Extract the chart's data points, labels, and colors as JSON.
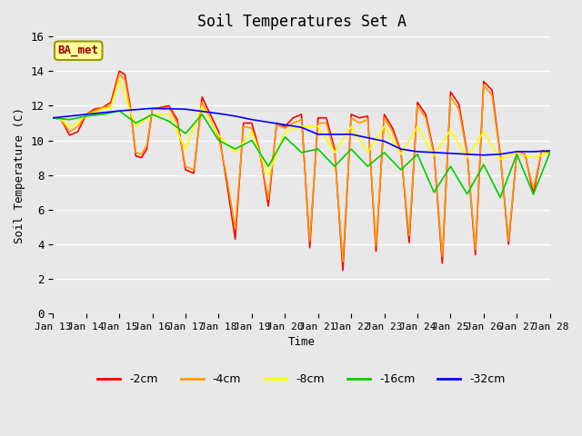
{
  "title": "Soil Temperatures Set A",
  "xlabel": "Time",
  "ylabel": "Soil Temperature (C)",
  "annotation": "BA_met",
  "ylim": [
    0,
    16
  ],
  "xlim": [
    0,
    15
  ],
  "background_color": "#e8e8e8",
  "plot_bg_color": "#e8e8e8",
  "colors": {
    "-2cm": "#ff0000",
    "-4cm": "#ff9900",
    "-8cm": "#ffff00",
    "-16cm": "#00cc00",
    "-32cm": "#0000ff"
  },
  "x_tick_labels": [
    "Jan 13",
    "Jan 14",
    "Jan 15",
    "Jan 16",
    "Jan 17",
    "Jan 18",
    "Jan 19",
    "Jan 20",
    "Jan 21",
    "Jan 22",
    "Jan 23",
    "Jan 24",
    "Jan 25",
    "Jan 26",
    "Jan 27",
    "Jan 28"
  ],
  "series": {
    "-2cm": {
      "x": [
        0.0,
        0.25,
        0.5,
        0.75,
        1.0,
        1.25,
        1.5,
        1.75,
        2.0,
        2.17,
        2.33,
        2.5,
        2.67,
        2.83,
        3.0,
        3.25,
        3.5,
        3.75,
        4.0,
        4.25,
        4.5,
        4.75,
        5.0,
        5.25,
        5.5,
        5.75,
        6.0,
        6.25,
        6.5,
        6.75,
        7.0,
        7.25,
        7.5,
        7.75,
        8.0,
        8.25,
        8.5,
        8.75,
        9.0,
        9.25,
        9.5,
        9.75,
        10.0,
        10.25,
        10.5,
        10.75,
        11.0,
        11.25,
        11.5,
        11.75,
        12.0,
        12.25,
        12.5,
        12.75,
        13.0,
        13.25,
        13.5,
        13.75,
        14.0,
        14.25,
        14.5,
        14.75,
        15.0
      ],
      "y": [
        11.3,
        11.2,
        10.3,
        10.5,
        11.5,
        11.8,
        11.9,
        12.2,
        14.0,
        13.8,
        12.0,
        9.1,
        9.0,
        9.5,
        11.8,
        11.9,
        12.0,
        11.2,
        8.3,
        8.1,
        12.5,
        11.5,
        10.5,
        7.5,
        4.3,
        11.0,
        11.0,
        9.3,
        6.2,
        11.0,
        10.8,
        11.3,
        11.5,
        3.8,
        11.3,
        11.3,
        9.5,
        2.5,
        11.5,
        11.3,
        11.4,
        3.6,
        11.5,
        10.7,
        9.4,
        4.1,
        12.2,
        11.5,
        9.3,
        2.9,
        12.8,
        12.1,
        9.3,
        3.4,
        13.4,
        12.9,
        9.2,
        4.0,
        9.3,
        9.2,
        6.9,
        9.4,
        9.3
      ]
    },
    "-4cm": {
      "x": [
        0.0,
        0.25,
        0.5,
        0.75,
        1.0,
        1.25,
        1.5,
        1.75,
        2.0,
        2.17,
        2.33,
        2.5,
        2.67,
        2.83,
        3.0,
        3.25,
        3.5,
        3.75,
        4.0,
        4.25,
        4.5,
        4.75,
        5.0,
        5.25,
        5.5,
        5.75,
        6.0,
        6.25,
        6.5,
        6.75,
        7.0,
        7.25,
        7.5,
        7.75,
        8.0,
        8.25,
        8.5,
        8.75,
        9.0,
        9.25,
        9.5,
        9.75,
        10.0,
        10.25,
        10.5,
        10.75,
        11.0,
        11.25,
        11.5,
        11.75,
        12.0,
        12.25,
        12.5,
        12.75,
        13.0,
        13.25,
        13.5,
        13.75,
        14.0,
        14.25,
        14.5,
        14.75,
        15.0
      ],
      "y": [
        11.3,
        11.2,
        10.5,
        10.8,
        11.5,
        11.7,
        11.9,
        12.0,
        13.8,
        13.5,
        11.8,
        9.3,
        9.2,
        9.7,
        11.8,
        11.8,
        11.9,
        11.0,
        8.5,
        8.3,
        12.2,
        11.2,
        10.2,
        7.8,
        4.9,
        10.8,
        10.7,
        9.2,
        6.6,
        10.9,
        10.7,
        11.0,
        11.2,
        4.2,
        11.0,
        11.0,
        9.3,
        3.0,
        11.3,
        11.0,
        11.2,
        3.9,
        11.3,
        10.5,
        9.3,
        4.5,
        12.0,
        11.3,
        9.2,
        3.3,
        12.5,
        11.8,
        9.2,
        3.7,
        13.2,
        12.6,
        9.1,
        4.2,
        9.3,
        9.1,
        7.2,
        9.4,
        9.2
      ]
    },
    "-8cm": {
      "x": [
        0.0,
        0.25,
        0.5,
        0.75,
        1.0,
        1.25,
        1.5,
        1.75,
        2.0,
        2.5,
        3.0,
        3.5,
        4.0,
        4.5,
        5.0,
        5.5,
        6.0,
        6.5,
        7.0,
        7.5,
        8.0,
        8.5,
        9.0,
        9.5,
        10.0,
        10.5,
        11.0,
        11.5,
        12.0,
        12.5,
        13.0,
        13.5,
        14.0,
        14.5,
        15.0
      ],
      "y": [
        11.3,
        11.2,
        10.8,
        11.0,
        11.5,
        11.6,
        11.8,
        11.9,
        13.5,
        10.8,
        11.5,
        11.5,
        9.5,
        12.0,
        10.3,
        9.3,
        10.5,
        8.0,
        10.5,
        10.8,
        10.8,
        9.3,
        10.8,
        9.3,
        10.8,
        9.2,
        10.8,
        9.1,
        10.6,
        9.0,
        10.5,
        8.9,
        9.3,
        9.0,
        9.3
      ]
    },
    "-16cm": {
      "x": [
        0.0,
        0.5,
        1.0,
        1.5,
        2.0,
        2.5,
        3.0,
        3.5,
        4.0,
        4.5,
        5.0,
        5.5,
        6.0,
        6.5,
        7.0,
        7.5,
        8.0,
        8.5,
        9.0,
        9.5,
        10.0,
        10.5,
        11.0,
        11.5,
        12.0,
        12.5,
        13.0,
        13.5,
        14.0,
        14.5,
        15.0
      ],
      "y": [
        11.3,
        11.2,
        11.4,
        11.5,
        11.7,
        11.0,
        11.5,
        11.1,
        10.4,
        11.5,
        10.0,
        9.5,
        10.0,
        8.5,
        10.2,
        9.3,
        9.5,
        8.5,
        9.5,
        8.5,
        9.3,
        8.3,
        9.2,
        7.0,
        8.5,
        6.9,
        8.6,
        6.7,
        9.2,
        6.9,
        9.3
      ]
    },
    "-32cm": {
      "x": [
        0.0,
        1.0,
        2.0,
        3.0,
        4.0,
        5.0,
        5.5,
        6.0,
        6.5,
        7.0,
        7.5,
        8.0,
        8.5,
        9.0,
        9.5,
        10.0,
        10.5,
        11.0,
        11.5,
        12.0,
        12.5,
        13.0,
        13.5,
        14.0,
        14.5,
        15.0
      ],
      "y": [
        11.3,
        11.5,
        11.7,
        11.85,
        11.8,
        11.55,
        11.4,
        11.2,
        11.05,
        10.9,
        10.75,
        10.35,
        10.35,
        10.35,
        10.15,
        9.95,
        9.5,
        9.35,
        9.3,
        9.25,
        9.2,
        9.15,
        9.2,
        9.35,
        9.35,
        9.4
      ]
    }
  }
}
